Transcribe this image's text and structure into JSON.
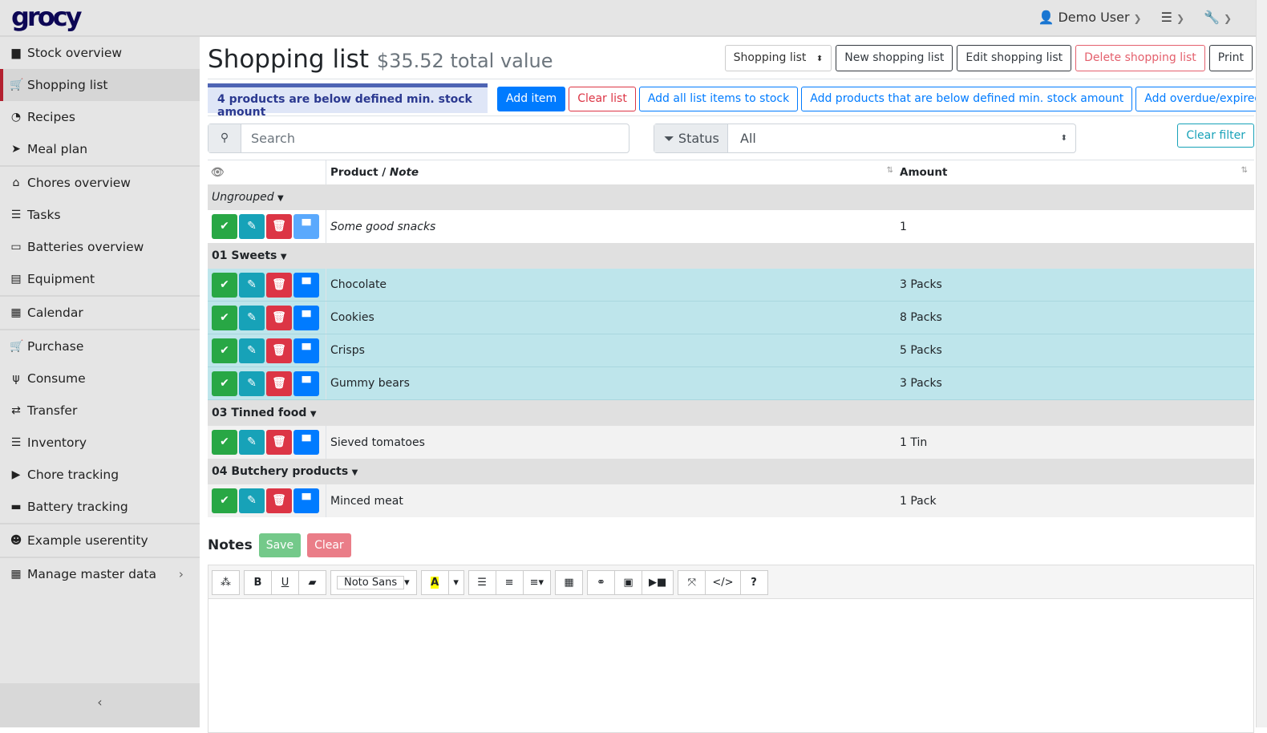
{
  "app": {
    "logo": "grocy",
    "user": "Demo User"
  },
  "sidebar": {
    "items": [
      {
        "label": "Stock overview",
        "icon": "▆"
      },
      {
        "label": "Shopping list",
        "icon": "🛒",
        "active": true
      },
      {
        "label": "Recipes",
        "icon": "◔"
      },
      {
        "label": "Meal plan",
        "icon": "➤"
      },
      {
        "label": "Chores overview",
        "icon": "⌂"
      },
      {
        "label": "Tasks",
        "icon": "☰"
      },
      {
        "label": "Batteries overview",
        "icon": "▭"
      },
      {
        "label": "Equipment",
        "icon": "▤"
      },
      {
        "label": "Calendar",
        "icon": "▦"
      },
      {
        "label": "Purchase",
        "icon": "🛒"
      },
      {
        "label": "Consume",
        "icon": "ψ"
      },
      {
        "label": "Transfer",
        "icon": "⇄"
      },
      {
        "label": "Inventory",
        "icon": "☰"
      },
      {
        "label": "Chore tracking",
        "icon": "▶"
      },
      {
        "label": "Battery tracking",
        "icon": "▬"
      },
      {
        "label": "Example userentity",
        "icon": "☻"
      },
      {
        "label": "Manage master data",
        "icon": "▦"
      }
    ],
    "collapse": "‹"
  },
  "page": {
    "title": "Shopping list",
    "subtitle": "$35.52 total value",
    "list_select": "Shopping list",
    "new": "New shopping list",
    "edit": "Edit shopping list",
    "delete": "Delete shopping list",
    "print": "Print",
    "alert": "4 products are below defined min. stock amount",
    "add_item": "Add item",
    "clear_list": "Clear list",
    "add_all": "Add all list items to stock",
    "add_below": "Add products that are below defined min. stock amount",
    "add_overdue": "Add overdue/expired products",
    "search_placeholder": "Search",
    "status_label": "Status",
    "status_value": "All",
    "clear_filter": "Clear filter"
  },
  "table": {
    "col_product": "Product / ",
    "col_note": "Note",
    "col_amount": "Amount",
    "groups": [
      {
        "name": "Ungrouped",
        "italic": true,
        "items": [
          {
            "product": "Some good snacks",
            "amount": "1",
            "note": true
          }
        ]
      },
      {
        "name": "01 Sweets",
        "items": [
          {
            "product": "Chocolate",
            "amount": "3 Packs",
            "below": true
          },
          {
            "product": "Cookies",
            "amount": "8 Packs",
            "below": true
          },
          {
            "product": "Crisps",
            "amount": "5 Packs",
            "below": true
          },
          {
            "product": "Gummy bears",
            "amount": "3 Packs",
            "below": true
          }
        ]
      },
      {
        "name": "03 Tinned food",
        "items": [
          {
            "product": "Sieved tomatoes",
            "amount": "1 Tin"
          }
        ]
      },
      {
        "name": "04 Butchery products",
        "items": [
          {
            "product": "Minced meat",
            "amount": "1 Pack"
          }
        ]
      }
    ]
  },
  "notes": {
    "title": "Notes",
    "save": "Save",
    "clear": "Clear",
    "font": "Noto Sans"
  },
  "colors": {
    "success": "#28a745",
    "info": "#17a2b8",
    "danger": "#dc3545",
    "primary": "#007bff",
    "row_highlight": "#bee5eb"
  }
}
